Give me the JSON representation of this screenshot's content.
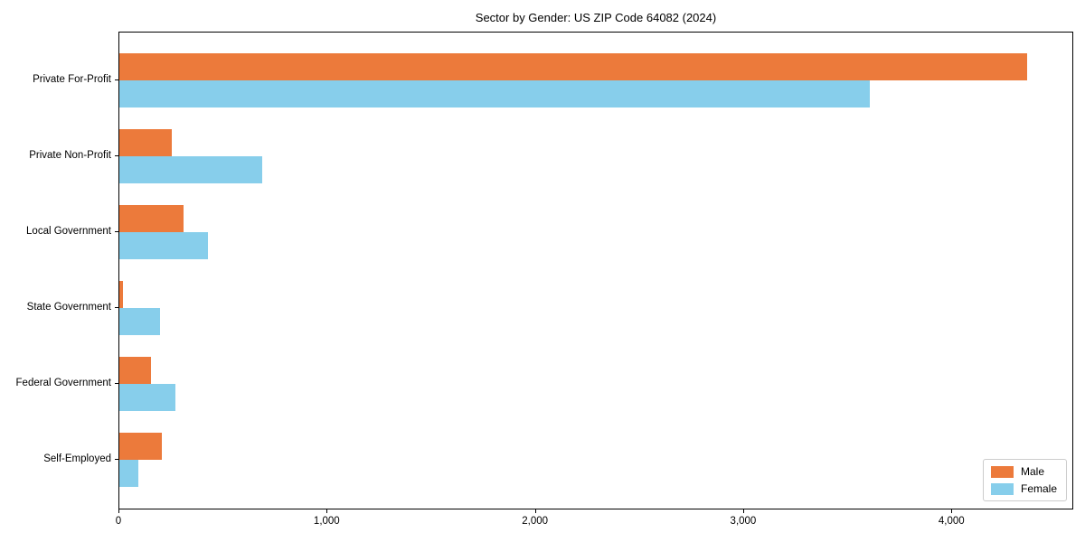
{
  "chart_data": {
    "type": "bar",
    "orientation": "horizontal",
    "title": "Sector by Gender: US ZIP Code 64082 (2024)",
    "categories": [
      "Private For-Profit",
      "Private Non-Profit",
      "Local Government",
      "State Government",
      "Federal Government",
      "Self-Employed"
    ],
    "series": [
      {
        "name": "Male",
        "color": "#ec7a3b",
        "values": [
          4360,
          253,
          308,
          17,
          151,
          205
        ]
      },
      {
        "name": "Female",
        "color": "#87ceeb",
        "values": [
          3605,
          687,
          425,
          194,
          268,
          90
        ]
      }
    ],
    "xlim": [
      0,
      4585
    ],
    "xticks": [
      0,
      1000,
      2000,
      3000,
      4000
    ],
    "xtick_labels": [
      "0",
      "1,000",
      "2,000",
      "3,000",
      "4,000"
    ],
    "xlabel": "",
    "ylabel": "",
    "grid": false,
    "legend_position": "lower right",
    "legend_entries": [
      "Male",
      "Female"
    ]
  },
  "colors": {
    "male": "#ec7a3b",
    "female": "#87ceeb",
    "spine": "#000000",
    "legend_border": "#cccccc",
    "background": "#ffffff"
  }
}
